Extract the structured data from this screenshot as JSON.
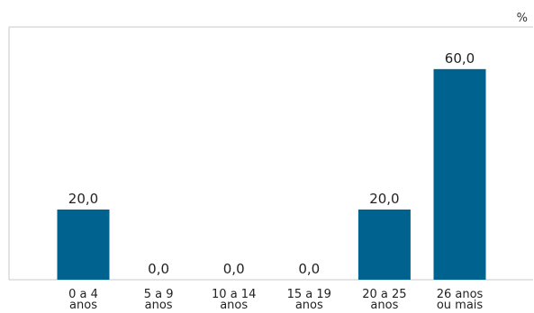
{
  "chart_data": {
    "type": "bar",
    "unit": "%",
    "categories": [
      [
        "0 a 4",
        "anos"
      ],
      [
        "5 a 9",
        "anos"
      ],
      [
        "10 a 14",
        "anos"
      ],
      [
        "15 a 19",
        "anos"
      ],
      [
        "20 a 25",
        "anos"
      ],
      [
        "26 anos",
        "ou mais"
      ]
    ],
    "values": [
      20.0,
      0.0,
      0.0,
      0.0,
      20.0,
      60.0
    ],
    "value_labels": [
      "20,0",
      "0,0",
      "0,0",
      "0,0",
      "20,0",
      "60,0"
    ],
    "title": "",
    "xlabel": "",
    "ylabel": "",
    "ylim": [
      0,
      72
    ],
    "grid": false,
    "legend": "none",
    "colors": {
      "bar": "#00628f",
      "frame": "#c8c8c8"
    }
  }
}
